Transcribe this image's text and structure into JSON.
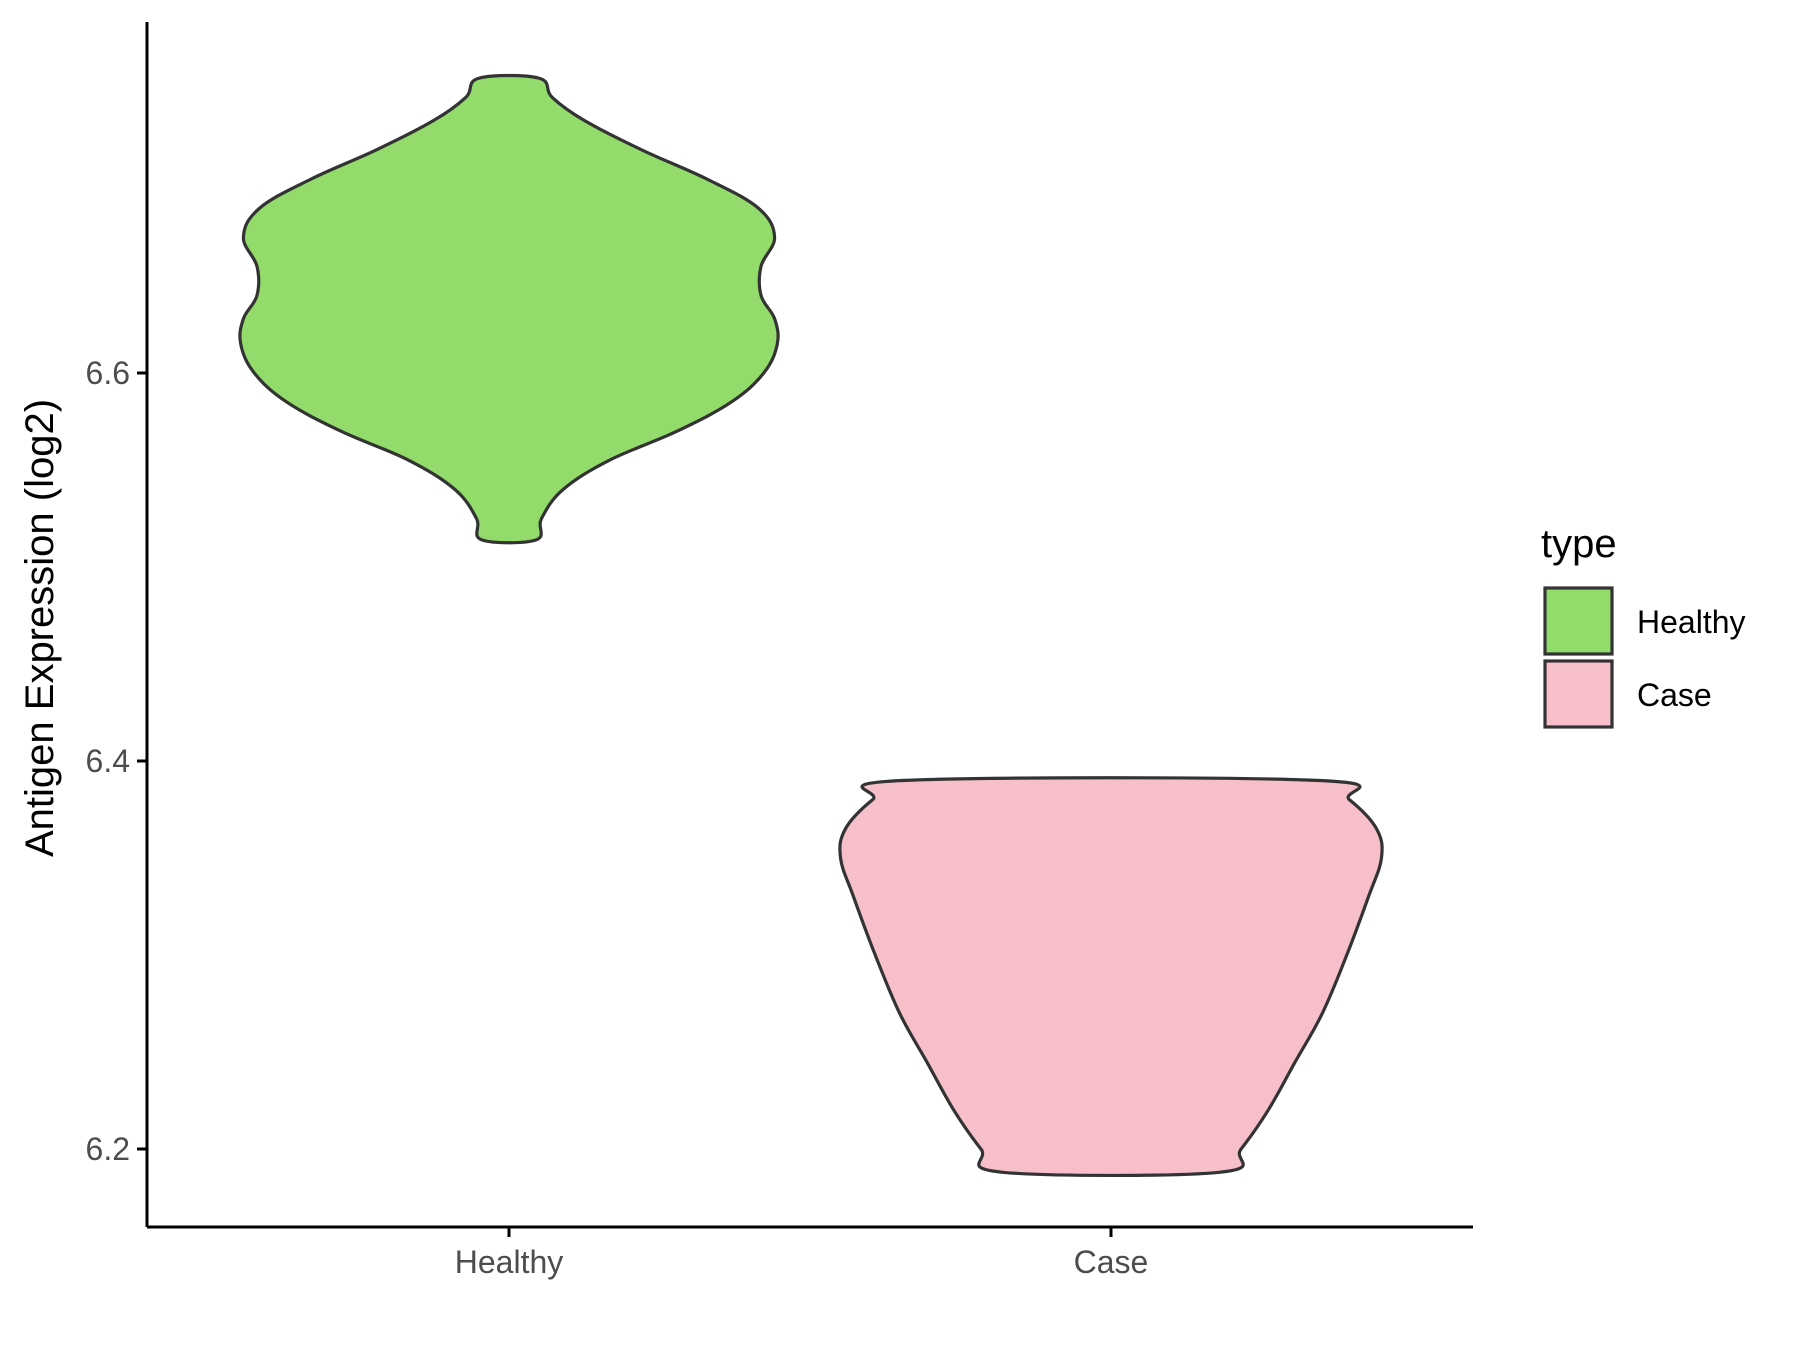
{
  "chart_data": {
    "type": "violin",
    "ylabel": "Antigen Expression (log2)",
    "xlabel": "",
    "categories": [
      "Healthy",
      "Case"
    ],
    "ylim": [
      6.16,
      6.78
    ],
    "yticks": [
      6.2,
      6.4,
      6.6
    ],
    "ytick_labels": [
      "6.2",
      "6.4",
      "6.6"
    ],
    "grid": false,
    "legend": {
      "title": "type",
      "position": "right",
      "entries": [
        "Healthy",
        "Case"
      ]
    },
    "series": [
      {
        "name": "Healthy",
        "color": "#93DC6B",
        "y_min": 6.514,
        "y_max": 6.752,
        "density": [
          [
            6.514,
            0.1
          ],
          [
            6.525,
            0.12
          ],
          [
            6.54,
            0.2
          ],
          [
            6.555,
            0.37
          ],
          [
            6.57,
            0.62
          ],
          [
            6.585,
            0.82
          ],
          [
            6.6,
            0.94
          ],
          [
            6.615,
            0.99
          ],
          [
            6.628,
            0.98
          ],
          [
            6.64,
            0.93
          ],
          [
            6.655,
            0.93
          ],
          [
            6.67,
            0.98
          ],
          [
            6.685,
            0.92
          ],
          [
            6.7,
            0.73
          ],
          [
            6.715,
            0.49
          ],
          [
            6.73,
            0.28
          ],
          [
            6.742,
            0.16
          ],
          [
            6.752,
            0.11
          ]
        ]
      },
      {
        "name": "Case",
        "color": "#F7BFCA",
        "y_min": 6.188,
        "y_max": 6.39,
        "density": [
          [
            6.188,
            0.4
          ],
          [
            6.2,
            0.48
          ],
          [
            6.22,
            0.58
          ],
          [
            6.245,
            0.68
          ],
          [
            6.27,
            0.78
          ],
          [
            6.3,
            0.87
          ],
          [
            6.33,
            0.95
          ],
          [
            6.35,
            0.998
          ],
          [
            6.365,
            0.98
          ],
          [
            6.38,
            0.88
          ],
          [
            6.39,
            0.76
          ]
        ]
      }
    ]
  }
}
